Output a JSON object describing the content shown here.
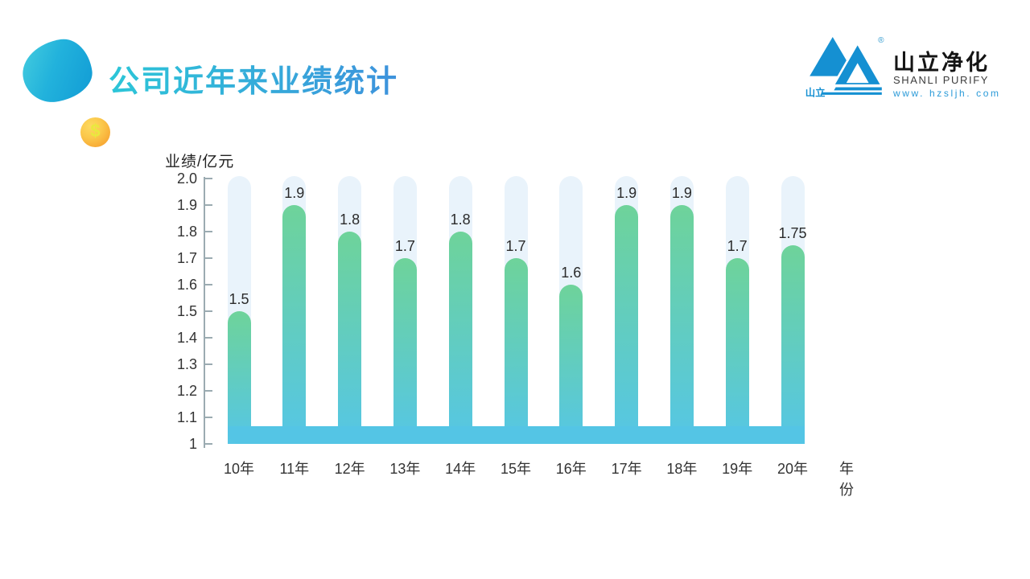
{
  "header": {
    "title": "公司近年来业绩统计",
    "coin_symbol": "$"
  },
  "logo": {
    "mark_label": "山立",
    "registered_mark": "®",
    "company_cn": "山立净化",
    "company_en": "SHANLI PURIFY",
    "website": "www. hzsljh. com",
    "brand_blue": "#1590d2"
  },
  "chart_data": {
    "type": "bar",
    "title": "公司近年来业绩统计",
    "ylabel": "业绩/亿元",
    "xlabel": "年份",
    "categories": [
      "10年",
      "11年",
      "12年",
      "13年",
      "14年",
      "15年",
      "16年",
      "17年",
      "18年",
      "19年",
      "20年"
    ],
    "values": [
      1.5,
      1.9,
      1.8,
      1.7,
      1.8,
      1.7,
      1.6,
      1.9,
      1.9,
      1.7,
      1.75
    ],
    "value_labels": [
      "1.5",
      "1.9",
      "1.8",
      "1.7",
      "1.8",
      "1.7",
      "1.6",
      "1.9",
      "1.9",
      "1.7",
      "1.75"
    ],
    "ylim": [
      1,
      2
    ],
    "ytick_values": [
      2.0,
      1.9,
      1.8,
      1.7,
      1.6,
      1.5,
      1.4,
      1.3,
      1.2,
      1.1,
      1
    ],
    "ytick_labels": [
      "2.0",
      "1.9",
      "1.8",
      "1.7",
      "1.6",
      "1.5",
      "1.4",
      "1.3",
      "1.2",
      "1.1",
      "1"
    ],
    "grid": false,
    "legend": null,
    "colors": {
      "bar_top": "#6ed39a",
      "bar_bottom": "#55c6e6",
      "track": "#e9f3fb",
      "band": "#54c5e5",
      "axis": "#9babb1",
      "label": "#2b2b2b"
    }
  }
}
